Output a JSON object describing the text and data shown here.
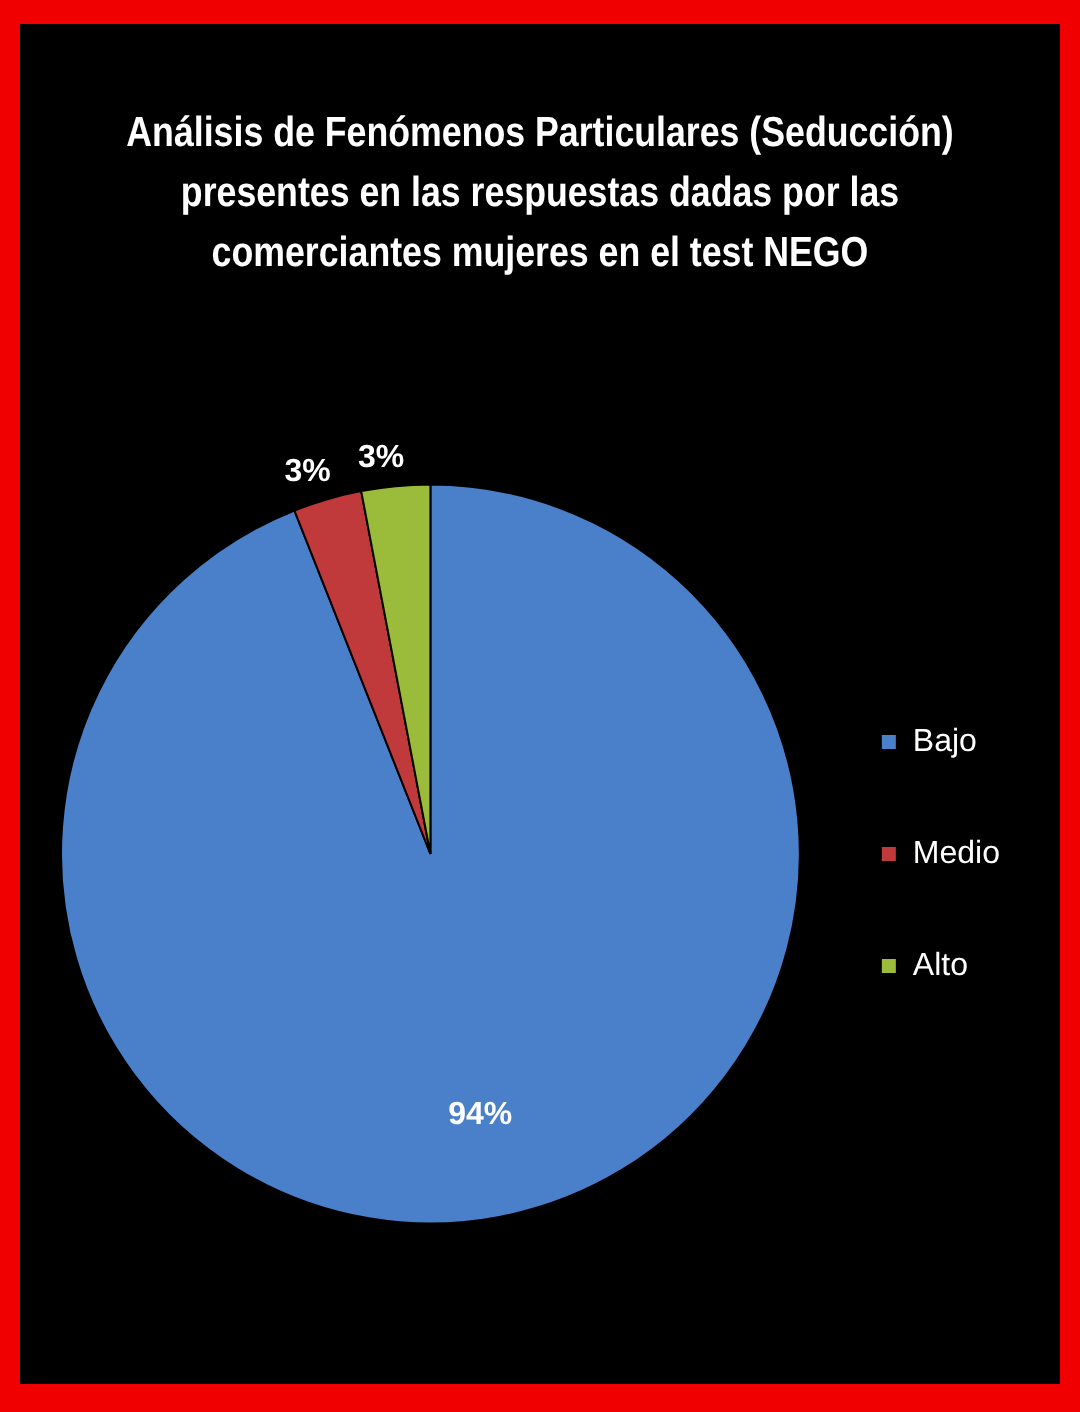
{
  "chart_data": {
    "type": "pie",
    "title": "Análisis de Fenómenos Particulares (Seducción) presentes en las respuestas dadas por las comerciantes mujeres en el test NEGO",
    "categories": [
      "Bajo",
      "Medio",
      "Alto"
    ],
    "values": [
      94,
      3,
      3
    ],
    "colors": [
      "#4a7fc9",
      "#c0393b",
      "#9bbb3b"
    ],
    "value_labels": [
      "94%",
      "3%",
      "3%"
    ],
    "legend": "right"
  }
}
